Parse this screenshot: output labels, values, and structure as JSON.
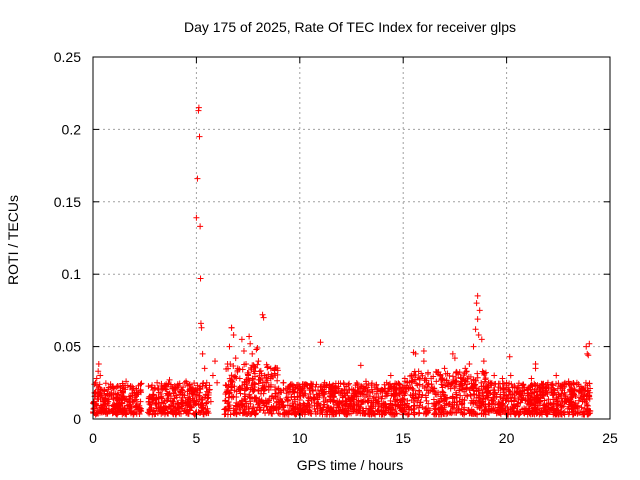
{
  "chart_data": {
    "type": "scatter",
    "title": "Day 175 of 2025, Rate Of TEC Index for receiver glps",
    "xlabel": "GPS time / hours",
    "ylabel": "ROTI / TECUs",
    "xlim": [
      0,
      25
    ],
    "ylim": [
      0,
      0.25
    ],
    "x_ticks": [
      0,
      5,
      10,
      15,
      20,
      25
    ],
    "x_tick_labels": [
      "0",
      "5",
      "10",
      "15",
      "20",
      "25"
    ],
    "y_ticks": [
      0,
      0.05,
      0.1,
      0.15,
      0.2,
      0.25
    ],
    "y_tick_labels": [
      "0",
      "0.05",
      "0.1",
      "0.15",
      "0.2",
      "0.25"
    ],
    "grid": true,
    "marker": "+",
    "series": [
      {
        "name": "ROTI",
        "color": "#ff0000",
        "x": [
          0.05,
          0.12,
          0.2,
          0.28,
          0.35,
          0.45,
          0.55,
          0.7,
          0.85,
          1.0,
          1.15,
          1.3,
          1.45,
          1.6,
          1.75,
          1.9,
          2.05,
          2.2,
          2.3,
          0.25,
          0.18,
          0.9,
          1.5,
          2.1,
          2.7,
          2.9,
          3.1,
          3.3,
          3.5,
          3.7,
          3.9,
          4.1,
          4.3,
          4.5,
          4.7,
          4.9,
          3.6,
          4.2,
          4.8,
          5.0,
          5.05,
          5.1,
          5.12,
          5.15,
          5.18,
          5.2,
          5.22,
          5.25,
          5.3,
          5.4,
          5.5,
          5.6,
          5.7,
          5.8,
          5.9,
          6.0,
          6.5,
          6.6,
          6.7,
          6.8,
          6.9,
          7.0,
          7.1,
          7.2,
          7.3,
          7.4,
          7.5,
          7.6,
          7.7,
          7.8,
          7.9,
          8.0,
          8.1,
          8.2,
          8.3,
          8.4,
          8.5,
          8.6,
          8.8,
          9.0,
          9.2,
          9.4,
          9.6,
          9.8,
          10.0,
          10.2,
          10.4,
          10.6,
          10.8,
          11.0,
          11.2,
          11.4,
          11.6,
          11.8,
          12.0,
          12.2,
          12.4,
          12.6,
          12.8,
          13.0,
          13.2,
          13.4,
          13.6,
          13.8,
          14.0,
          14.2,
          14.4,
          14.6,
          14.8,
          15.0,
          15.2,
          15.4,
          15.6,
          15.8,
          16.0,
          16.2,
          16.4,
          16.6,
          16.8,
          17.0,
          17.2,
          17.4,
          17.6,
          17.8,
          18.0,
          18.2,
          18.4,
          18.5,
          18.6,
          18.7,
          18.8,
          18.9,
          19.0,
          19.2,
          19.4,
          19.6,
          19.8,
          20.0,
          20.2,
          20.4,
          20.6,
          20.8,
          21.0,
          21.2,
          21.4,
          21.6,
          21.8,
          22.0,
          22.2,
          22.4,
          22.6,
          22.8,
          23.0,
          23.2,
          23.4,
          23.6,
          23.8,
          23.9,
          24.0,
          11.0,
          15.5,
          16.0,
          17.5,
          18.55,
          18.6,
          18.65,
          20.15,
          23.85,
          23.95,
          12.95,
          8.25,
          7.55,
          6.7,
          7.95,
          21.4
        ],
        "y": [
          0.012,
          0.025,
          0.018,
          0.038,
          0.03,
          0.015,
          0.02,
          0.011,
          0.024,
          0.017,
          0.022,
          0.013,
          0.019,
          0.026,
          0.014,
          0.021,
          0.016,
          0.023,
          0.012,
          0.033,
          0.028,
          0.018,
          0.015,
          0.02,
          0.012,
          0.02,
          0.025,
          0.015,
          0.022,
          0.027,
          0.018,
          0.024,
          0.02,
          0.026,
          0.014,
          0.019,
          0.013,
          0.017,
          0.021,
          0.139,
          0.166,
          0.213,
          0.215,
          0.195,
          0.133,
          0.097,
          0.066,
          0.063,
          0.045,
          0.035,
          0.025,
          0.018,
          0.012,
          0.03,
          0.04,
          0.025,
          0.02,
          0.05,
          0.063,
          0.058,
          0.042,
          0.035,
          0.028,
          0.055,
          0.047,
          0.038,
          0.03,
          0.052,
          0.045,
          0.033,
          0.048,
          0.04,
          0.027,
          0.072,
          0.03,
          0.025,
          0.02,
          0.028,
          0.022,
          0.018,
          0.025,
          0.02,
          0.015,
          0.022,
          0.018,
          0.024,
          0.015,
          0.02,
          0.017,
          0.022,
          0.025,
          0.019,
          0.015,
          0.021,
          0.018,
          0.012,
          0.02,
          0.016,
          0.024,
          0.019,
          0.026,
          0.018,
          0.022,
          0.015,
          0.02,
          0.025,
          0.03,
          0.017,
          0.021,
          0.019,
          0.025,
          0.03,
          0.045,
          0.028,
          0.04,
          0.032,
          0.022,
          0.026,
          0.03,
          0.035,
          0.025,
          0.045,
          0.032,
          0.028,
          0.035,
          0.038,
          0.05,
          0.062,
          0.085,
          0.075,
          0.055,
          0.04,
          0.032,
          0.025,
          0.03,
          0.022,
          0.028,
          0.025,
          0.03,
          0.022,
          0.018,
          0.024,
          0.02,
          0.028,
          0.035,
          0.022,
          0.018,
          0.025,
          0.02,
          0.03,
          0.022,
          0.018,
          0.026,
          0.02,
          0.025,
          0.018,
          0.022,
          0.045,
          0.052,
          0.053,
          0.046,
          0.047,
          0.042,
          0.08,
          0.069,
          0.058,
          0.043,
          0.05,
          0.044,
          0.037,
          0.07,
          0.057,
          0.063,
          0.049,
          0.038
        ]
      }
    ]
  }
}
